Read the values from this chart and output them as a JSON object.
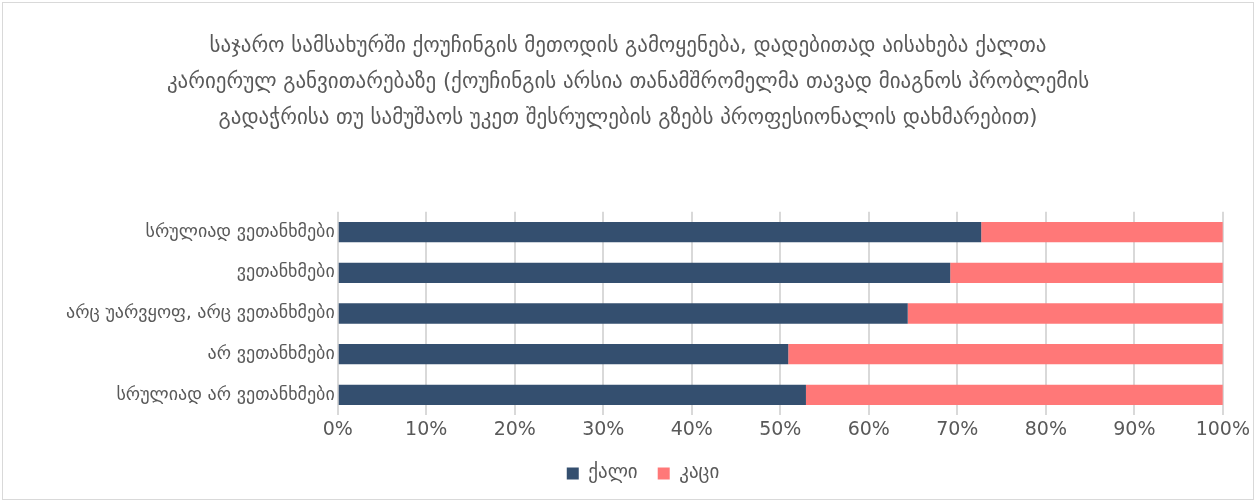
{
  "chart_data": {
    "type": "bar",
    "orientation": "horizontal",
    "stacked": true,
    "title": "საჯარო სამსახურში ქოუჩინგის მეთოდის გამოყენება, დადებითად აისახება ქალთა კარიერულ განვითარებაზე (ქოუჩინგის არსია თანამშრომელმა თავად მიაგნოს პრობლემის გადაჭრისა თუ სამუშაოს უკეთ შესრულების გზებს პროფესიონალის დახმარებით)",
    "categories": [
      "სრულიად ვეთანხმები",
      "ვეთანხმები",
      "არც უარვყოფ, არც ვეთანხმები",
      "არ ვეთანხმები",
      "სრულიად არ ვეთანხმები"
    ],
    "series": [
      {
        "name": "ქალი",
        "color": "#344f6f",
        "values": [
          72.7,
          69.2,
          64.4,
          50.9,
          52.9
        ]
      },
      {
        "name": "კაცი",
        "color": "#ff7878",
        "values": [
          27.3,
          30.8,
          35.6,
          49.1,
          47.1
        ]
      }
    ],
    "xlim": [
      0,
      100
    ],
    "xticks": [
      {
        "value": 0,
        "label": "0%"
      },
      {
        "value": 10,
        "label": "10%"
      },
      {
        "value": 20,
        "label": "20%"
      },
      {
        "value": 30,
        "label": "30%"
      },
      {
        "value": 40,
        "label": "40%"
      },
      {
        "value": 50,
        "label": "50%"
      },
      {
        "value": 60,
        "label": "60%"
      },
      {
        "value": 70,
        "label": "70%"
      },
      {
        "value": 80,
        "label": "80%"
      },
      {
        "value": 90,
        "label": "90%"
      },
      {
        "value": 100,
        "label": "100%"
      }
    ],
    "grid": "x",
    "legend": "bottom"
  }
}
